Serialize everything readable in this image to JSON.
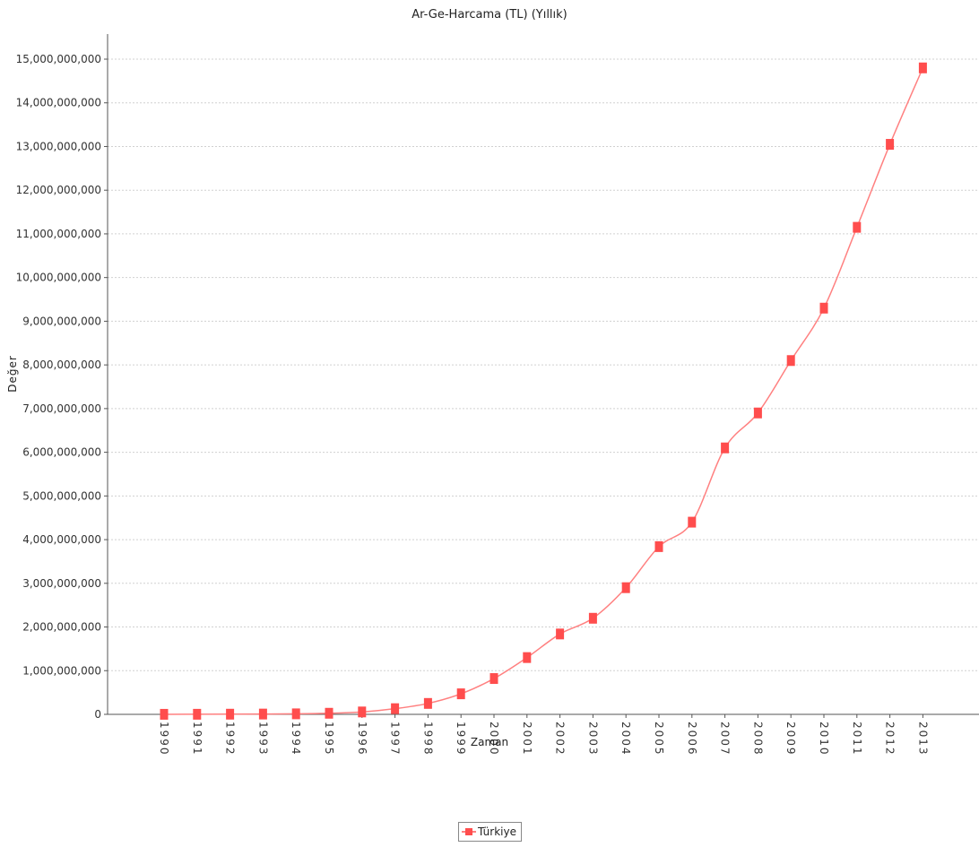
{
  "chart_data": {
    "type": "line",
    "title": "Ar-Ge-Harcama (TL) (Yıllık)",
    "xlabel": "Zaman",
    "ylabel": "Değer",
    "x": [
      "1990",
      "1991",
      "1992",
      "1993",
      "1994",
      "1995",
      "1996",
      "1997",
      "1998",
      "1999",
      "2000",
      "2001",
      "2002",
      "2003",
      "2004",
      "2005",
      "2006",
      "2007",
      "2008",
      "2009",
      "2010",
      "2011",
      "2012",
      "2013"
    ],
    "series": [
      {
        "name": "Türkiye",
        "color": "#ff4d4d",
        "line_color": "#ff8080",
        "values": [
          1000000,
          2000000,
          4000000,
          7000000,
          12000000,
          25000000,
          55000000,
          130000000,
          250000000,
          470000000,
          820000000,
          1300000000,
          1840000000,
          2200000000,
          2900000000,
          3840000000,
          4400000000,
          6100000000,
          6900000000,
          8100000000,
          9300000000,
          11150000000,
          13050000000,
          14800000000
        ]
      }
    ],
    "ylim": [
      0,
      15000000000
    ],
    "yticks": [
      0,
      1000000000,
      2000000000,
      3000000000,
      4000000000,
      5000000000,
      6000000000,
      7000000000,
      8000000000,
      9000000000,
      10000000000,
      11000000000,
      12000000000,
      13000000000,
      14000000000,
      15000000000
    ],
    "ytick_labels": [
      "0",
      "1,000,000,000",
      "2,000,000,000",
      "3,000,000,000",
      "4,000,000,000",
      "5,000,000,000",
      "6,000,000,000",
      "7,000,000,000",
      "8,000,000,000",
      "9,000,000,000",
      "10,000,000,000",
      "11,000,000,000",
      "12,000,000,000",
      "13,000,000,000",
      "14,000,000,000",
      "15,000,000,000"
    ],
    "grid": true,
    "legend_position": "bottom-center"
  }
}
